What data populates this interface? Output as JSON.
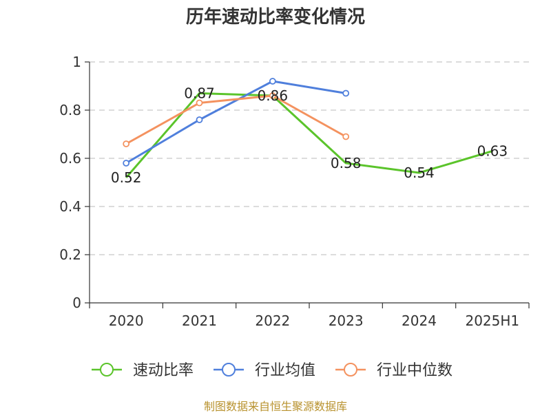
{
  "chart_data": {
    "type": "line",
    "title": "历年速动比率变化情况",
    "categories": [
      "2020",
      "2021",
      "2022",
      "2023",
      "2024",
      "2025H1"
    ],
    "ylim": [
      0,
      1
    ],
    "yticks": [
      0,
      0.2,
      0.4,
      0.6,
      0.8,
      1
    ],
    "grid": true,
    "legend": "bottom",
    "series": [
      {
        "name": "速动比率",
        "color": "#5bc42b",
        "values": [
          0.52,
          0.87,
          0.86,
          0.58,
          0.54,
          0.63
        ],
        "markers": false,
        "show_data_labels": true
      },
      {
        "name": "行业均值",
        "color": "#4f7fdc",
        "values": [
          0.58,
          0.76,
          0.92,
          0.87,
          null,
          null
        ],
        "markers": true,
        "show_data_labels": false
      },
      {
        "name": "行业中位数",
        "color": "#f4925f",
        "values": [
          0.66,
          0.83,
          0.86,
          0.69,
          null,
          null
        ],
        "markers": true,
        "show_data_labels": false
      }
    ]
  },
  "footer": {
    "source": "制图数据来自恒生聚源数据库"
  }
}
